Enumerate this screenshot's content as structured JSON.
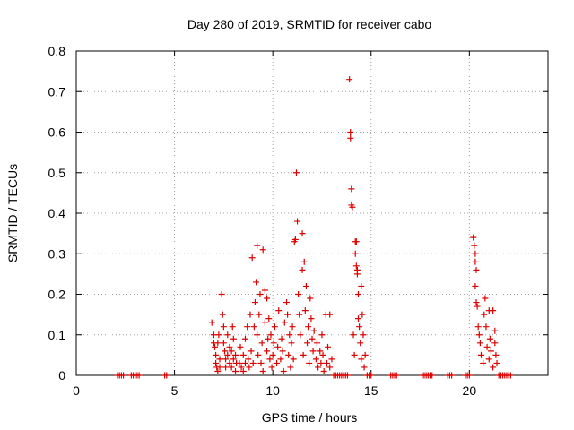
{
  "chart_data": {
    "type": "scatter",
    "title": "Day 280 of 2019, SRMTID for receiver cabo",
    "xlabel": "GPS time / hours",
    "ylabel": "SRMTID / TECUs",
    "xlim": [
      0,
      24
    ],
    "ylim": [
      0,
      0.8
    ],
    "x_ticks": [
      0,
      5,
      10,
      15,
      20
    ],
    "x_tick_labels": [
      "0",
      "5",
      "10",
      "15",
      "20"
    ],
    "y_ticks": [
      0,
      0.1,
      0.2,
      0.3,
      0.4,
      0.5,
      0.6,
      0.7,
      0.8
    ],
    "y_tick_labels": [
      "0",
      "0.1",
      "0.2",
      "0.3",
      "0.4",
      "0.5",
      "0.6",
      "0.7",
      "0.8"
    ],
    "grid": true,
    "marker": "+",
    "color": "#dd0000",
    "series": [
      {
        "name": "SRMTID",
        "points": [
          [
            2.1,
            0
          ],
          [
            2.2,
            0
          ],
          [
            2.3,
            0
          ],
          [
            2.4,
            0
          ],
          [
            2.8,
            0
          ],
          [
            2.9,
            0
          ],
          [
            3.0,
            0
          ],
          [
            3.1,
            0
          ],
          [
            3.2,
            0
          ],
          [
            4.5,
            0
          ],
          [
            4.6,
            0
          ],
          [
            6.9,
            0.13
          ],
          [
            7.0,
            0.1
          ],
          [
            7.0,
            0.08
          ],
          [
            7.05,
            0.07
          ],
          [
            7.1,
            0.05
          ],
          [
            7.1,
            0.03
          ],
          [
            7.15,
            0.02
          ],
          [
            7.2,
            0.01
          ],
          [
            7.2,
            0.08
          ],
          [
            7.25,
            0.1
          ],
          [
            7.3,
            0.04
          ],
          [
            7.3,
            0.02
          ],
          [
            7.4,
            0.2
          ],
          [
            7.45,
            0.15
          ],
          [
            7.5,
            0.12
          ],
          [
            7.5,
            0.08
          ],
          [
            7.55,
            0.06
          ],
          [
            7.6,
            0.04
          ],
          [
            7.6,
            0.02
          ],
          [
            7.7,
            0.1
          ],
          [
            7.7,
            0.05
          ],
          [
            7.8,
            0.07
          ],
          [
            7.8,
            0.03
          ],
          [
            7.9,
            0.02
          ],
          [
            7.9,
            0.06
          ],
          [
            7.95,
            0.12
          ],
          [
            8.0,
            0.09
          ],
          [
            8.0,
            0.04
          ],
          [
            8.1,
            0.01
          ],
          [
            8.1,
            0.05
          ],
          [
            8.15,
            0.03
          ],
          [
            8.3,
            0.03
          ],
          [
            8.35,
            0.07
          ],
          [
            8.4,
            0.02
          ],
          [
            8.5,
            0.01
          ],
          [
            8.5,
            0.05
          ],
          [
            8.6,
            0.03
          ],
          [
            8.6,
            0.09
          ],
          [
            8.7,
            0.12
          ],
          [
            8.75,
            0.04
          ],
          [
            8.8,
            0.02
          ],
          [
            8.85,
            0.15
          ],
          [
            8.9,
            0.06
          ],
          [
            8.95,
            0.29
          ],
          [
            9.0,
            0.03
          ],
          [
            9.05,
            0.12
          ],
          [
            9.1,
            0.18
          ],
          [
            9.15,
            0.23
          ],
          [
            9.2,
            0.32
          ],
          [
            9.2,
            0.1
          ],
          [
            9.25,
            0.05
          ],
          [
            9.3,
            0.15
          ],
          [
            9.35,
            0.2
          ],
          [
            9.4,
            0.03
          ],
          [
            9.45,
            0.08
          ],
          [
            9.5,
            0.31
          ],
          [
            9.5,
            0.01
          ],
          [
            9.6,
            0.21
          ],
          [
            9.6,
            0.13
          ],
          [
            9.7,
            0.19
          ],
          [
            9.7,
            0.06
          ],
          [
            9.75,
            0.09
          ],
          [
            9.8,
            0.14
          ],
          [
            9.85,
            0.04
          ],
          [
            9.9,
            0.1
          ],
          [
            9.95,
            0.02
          ],
          [
            10.0,
            0.05
          ],
          [
            10.05,
            0.08
          ],
          [
            10.1,
            0.12
          ],
          [
            10.2,
            0.03
          ],
          [
            10.25,
            0.07
          ],
          [
            10.3,
            0.16
          ],
          [
            10.4,
            0.04
          ],
          [
            10.45,
            0.09
          ],
          [
            10.5,
            0.06
          ],
          [
            10.55,
            0.01
          ],
          [
            10.6,
            0.13
          ],
          [
            10.7,
            0.18
          ],
          [
            10.75,
            0.15
          ],
          [
            10.8,
            0.05
          ],
          [
            10.85,
            0.1
          ],
          [
            10.9,
            0.02
          ],
          [
            10.95,
            0.08
          ],
          [
            11.0,
            0.12
          ],
          [
            11.05,
            0.04
          ],
          [
            11.1,
            0.33
          ],
          [
            11.15,
            0.335
          ],
          [
            11.2,
            0.5
          ],
          [
            11.25,
            0.38
          ],
          [
            11.3,
            0.2
          ],
          [
            11.35,
            0.15
          ],
          [
            11.4,
            0.1
          ],
          [
            11.5,
            0.35
          ],
          [
            11.5,
            0.26
          ],
          [
            11.55,
            0.05
          ],
          [
            11.6,
            0.28
          ],
          [
            11.65,
            0.16
          ],
          [
            11.7,
            0.22
          ],
          [
            11.75,
            0.08
          ],
          [
            11.8,
            0.12
          ],
          [
            11.85,
            0.03
          ],
          [
            11.9,
            0.19
          ],
          [
            11.95,
            0.14
          ],
          [
            12.0,
            0.09
          ],
          [
            12.05,
            0.06
          ],
          [
            12.1,
            0.11
          ],
          [
            12.2,
            0.04
          ],
          [
            12.25,
            0.08
          ],
          [
            12.3,
            0.02
          ],
          [
            12.4,
            0.06
          ],
          [
            12.45,
            0.03
          ],
          [
            12.5,
            0.1
          ],
          [
            12.55,
            0.05
          ],
          [
            12.6,
            0.01
          ],
          [
            12.7,
            0.15
          ],
          [
            12.75,
            0.03
          ],
          [
            12.8,
            0.07
          ],
          [
            12.9,
            0.15
          ],
          [
            12.9,
            0.02
          ],
          [
            13.0,
            0.04
          ],
          [
            13.1,
            0
          ],
          [
            13.2,
            0
          ],
          [
            13.3,
            0
          ],
          [
            13.4,
            0
          ],
          [
            13.5,
            0
          ],
          [
            13.6,
            0
          ],
          [
            13.7,
            0
          ],
          [
            13.8,
            0
          ],
          [
            13.9,
            0.73
          ],
          [
            13.95,
            0.6
          ],
          [
            13.95,
            0.585
          ],
          [
            14.0,
            0.46
          ],
          [
            14.0,
            0.42
          ],
          [
            14.05,
            0.415
          ],
          [
            14.1,
            0.1
          ],
          [
            14.15,
            0.05
          ],
          [
            14.2,
            0.33
          ],
          [
            14.2,
            0.3
          ],
          [
            14.25,
            0.33
          ],
          [
            14.25,
            0.27
          ],
          [
            14.3,
            0.26
          ],
          [
            14.3,
            0.25
          ],
          [
            14.35,
            0.2
          ],
          [
            14.35,
            0.14
          ],
          [
            14.4,
            0.12
          ],
          [
            14.45,
            0.08
          ],
          [
            14.5,
            0.22
          ],
          [
            14.5,
            0.04
          ],
          [
            14.55,
            0.15
          ],
          [
            14.6,
            0.1
          ],
          [
            14.65,
            0.02
          ],
          [
            14.7,
            0.05
          ],
          [
            14.8,
            0
          ],
          [
            14.9,
            0
          ],
          [
            15.0,
            0
          ],
          [
            16.0,
            0
          ],
          [
            16.1,
            0
          ],
          [
            16.2,
            0
          ],
          [
            16.3,
            0
          ],
          [
            17.6,
            0
          ],
          [
            17.7,
            0
          ],
          [
            17.8,
            0
          ],
          [
            17.9,
            0
          ],
          [
            18.0,
            0
          ],
          [
            18.1,
            0
          ],
          [
            18.9,
            0
          ],
          [
            19.0,
            0
          ],
          [
            19.1,
            0
          ],
          [
            19.8,
            0
          ],
          [
            19.9,
            0
          ],
          [
            20.0,
            0
          ],
          [
            20.2,
            0.34
          ],
          [
            20.25,
            0.32
          ],
          [
            20.3,
            0.3
          ],
          [
            20.3,
            0.28
          ],
          [
            20.35,
            0.26
          ],
          [
            20.3,
            0.22
          ],
          [
            20.35,
            0.18
          ],
          [
            20.4,
            0.17
          ],
          [
            20.45,
            0.12
          ],
          [
            20.5,
            0.1
          ],
          [
            20.55,
            0.08
          ],
          [
            20.6,
            0.05
          ],
          [
            20.7,
            0.03
          ],
          [
            20.75,
            0.15
          ],
          [
            20.8,
            0.19
          ],
          [
            20.85,
            0.12
          ],
          [
            20.9,
            0.07
          ],
          [
            21.0,
            0.16
          ],
          [
            21.0,
            0.04
          ],
          [
            21.05,
            0.09
          ],
          [
            21.1,
            0.06
          ],
          [
            21.2,
            0.16
          ],
          [
            21.2,
            0.02
          ],
          [
            21.3,
            0.11
          ],
          [
            21.3,
            0.08
          ],
          [
            21.35,
            0.05
          ],
          [
            21.4,
            0.03
          ],
          [
            21.5,
            0
          ],
          [
            21.6,
            0
          ],
          [
            21.7,
            0
          ],
          [
            21.8,
            0
          ],
          [
            21.9,
            0
          ],
          [
            22.0,
            0
          ],
          [
            22.1,
            0
          ]
        ]
      }
    ]
  }
}
